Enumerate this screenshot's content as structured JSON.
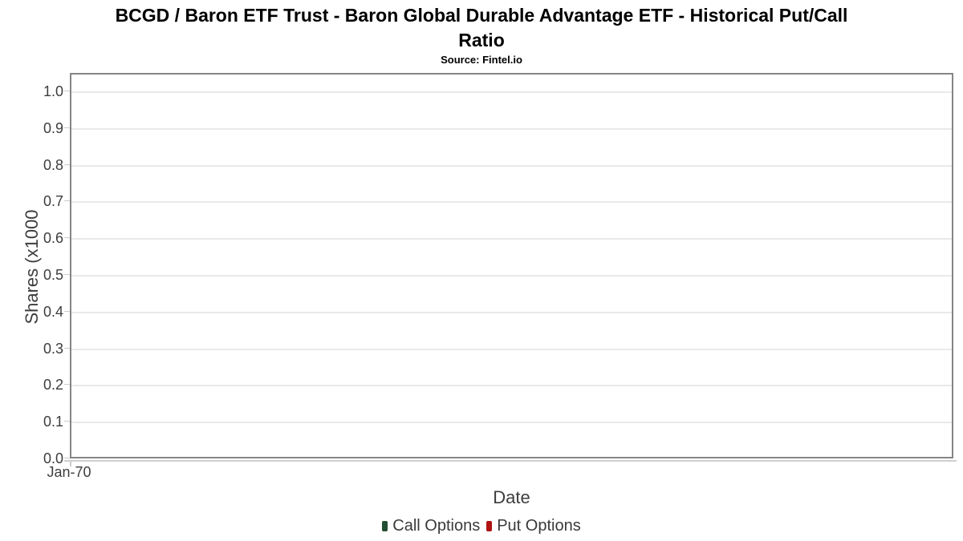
{
  "title": {
    "line1": "BCGD / Baron ETF Trust - Baron Global Durable Advantage ETF - Historical Put/Call",
    "line2": "Ratio",
    "source": "Source: Fintel.io"
  },
  "colors": {
    "plot_border": "#858585",
    "gridline": "#e9e9e9",
    "tick": "#cccccc",
    "title_text": "#000000",
    "axis_text": "#3d3d3d",
    "legend_text": "#3a3a3a",
    "call_options": "#224f31",
    "put_options": "#b01212"
  },
  "chart_data": {
    "type": "bar",
    "title": "BCGD / Baron ETF Trust - Baron Global Durable Advantage ETF - Historical Put/Call Ratio",
    "subtitle": "Source: Fintel.io",
    "xlabel": "Date",
    "ylabel": "Shares (x1000",
    "x_tick_labels": [
      "Jan-70"
    ],
    "y_tick_labels": [
      "0.0",
      "0.1",
      "0.2",
      "0.3",
      "0.4",
      "0.5",
      "0.6",
      "0.7",
      "0.8",
      "0.9",
      "1.0"
    ],
    "ylim": [
      0,
      1.05
    ],
    "grid": true,
    "legend_position": "bottom-center",
    "series": [
      {
        "name": "Call Options",
        "color": "#224f31",
        "values": []
      },
      {
        "name": "Put Options",
        "color": "#b01212",
        "values": []
      }
    ]
  }
}
